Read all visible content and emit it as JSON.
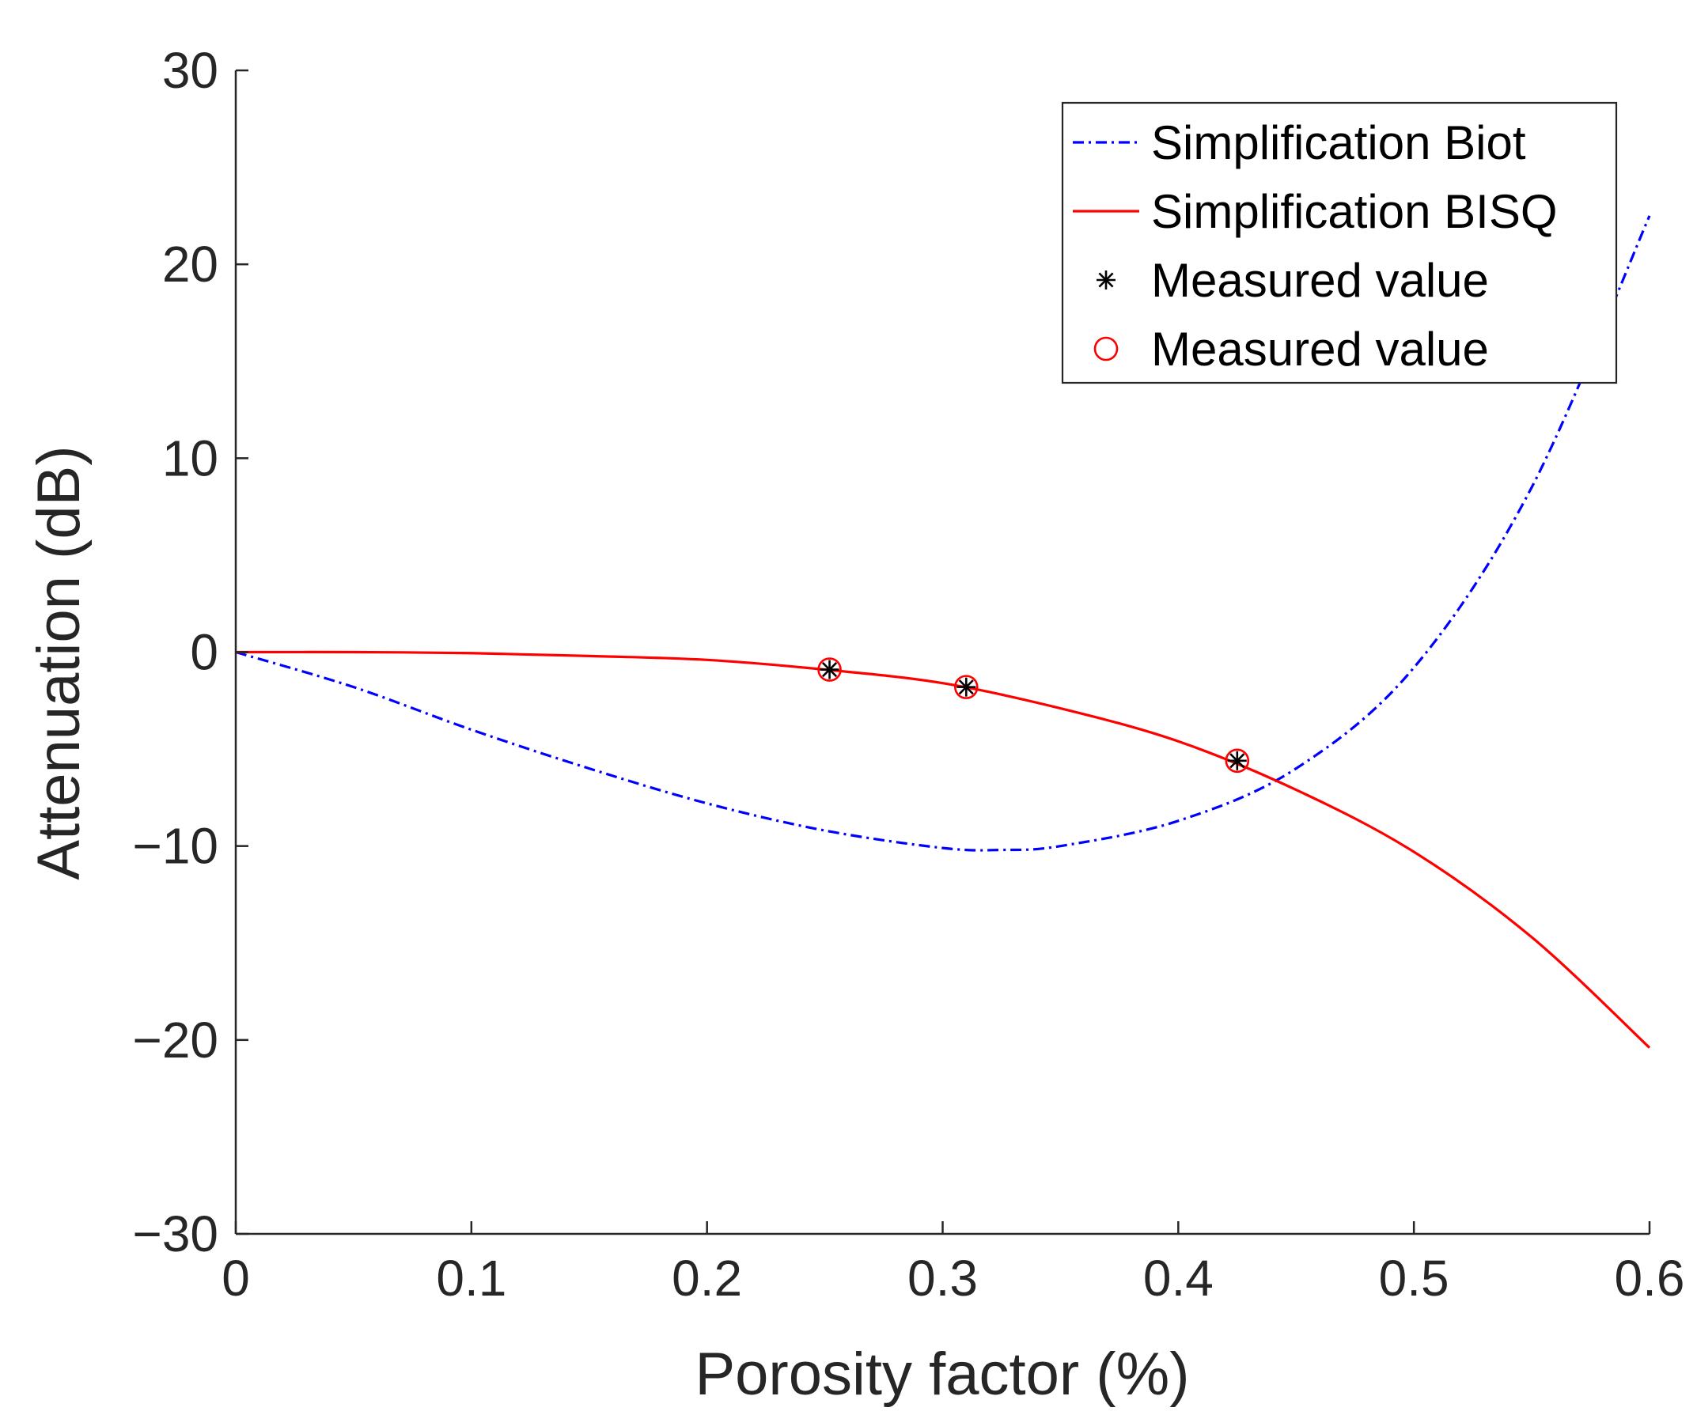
{
  "chart_data": {
    "type": "line",
    "title": "",
    "xlabel": "Porosity factor (%)",
    "ylabel": "Attenuation (dB)",
    "xlim": [
      0,
      0.6
    ],
    "ylim": [
      -30,
      30
    ],
    "xticks": [
      0,
      0.1,
      0.2,
      0.3,
      0.4,
      0.5,
      0.6
    ],
    "xtick_labels": [
      "0",
      "0.1",
      "0.2",
      "0.3",
      "0.4",
      "0.5",
      "0.6"
    ],
    "yticks": [
      -30,
      -20,
      -10,
      0,
      10,
      20,
      30
    ],
    "ytick_labels": [
      "−30",
      "−20",
      "−10",
      "0",
      "10",
      "20",
      "30"
    ],
    "grid": false,
    "legend_position": "top-right",
    "series": [
      {
        "name": "Simplification Biot",
        "kind": "line",
        "style": "dashdot",
        "color": "#0000ff",
        "x": [
          0,
          0.05,
          0.1,
          0.15,
          0.2,
          0.25,
          0.3,
          0.325,
          0.35,
          0.4,
          0.45,
          0.5,
          0.55,
          0.6
        ],
        "y": [
          0,
          -1.8,
          -4.0,
          -6.0,
          -7.8,
          -9.2,
          -10.1,
          -10.2,
          -10.0,
          -8.7,
          -6.0,
          -0.8,
          8.5,
          22.5
        ]
      },
      {
        "name": "Simplification BISQ",
        "kind": "line",
        "style": "solid",
        "color": "#ff0000",
        "x": [
          0,
          0.05,
          0.1,
          0.15,
          0.2,
          0.25,
          0.3,
          0.35,
          0.4,
          0.45,
          0.5,
          0.55,
          0.6
        ],
        "y": [
          0,
          0,
          -0.05,
          -0.2,
          -0.4,
          -0.9,
          -1.6,
          -2.9,
          -4.6,
          -7.1,
          -10.3,
          -14.7,
          -20.4
        ]
      },
      {
        "name": "Measured value",
        "kind": "scatter",
        "marker": "asterisk",
        "color": "#000000",
        "x": [
          0.252,
          0.31,
          0.425
        ],
        "y": [
          -0.9,
          -1.8,
          -5.6
        ]
      },
      {
        "name": "Measured value",
        "kind": "scatter",
        "marker": "circle",
        "color": "#ff0000",
        "x": [
          0.252,
          0.31,
          0.425
        ],
        "y": [
          -0.9,
          -1.8,
          -5.6
        ]
      }
    ]
  }
}
